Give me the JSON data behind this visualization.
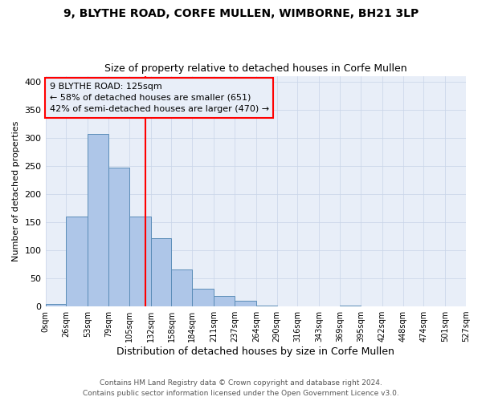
{
  "title": "9, BLYTHE ROAD, CORFE MULLEN, WIMBORNE, BH21 3LP",
  "subtitle": "Size of property relative to detached houses in Corfe Mullen",
  "xlabel": "Distribution of detached houses by size in Corfe Mullen",
  "ylabel": "Number of detached properties",
  "bar_edges": [
    0,
    26,
    53,
    79,
    105,
    132,
    158,
    184,
    211,
    237,
    264,
    290,
    316,
    343,
    369,
    395,
    422,
    448,
    474,
    501,
    527
  ],
  "bar_heights": [
    5,
    160,
    307,
    247,
    160,
    122,
    65,
    31,
    18,
    10,
    1,
    0,
    0,
    0,
    1,
    0,
    0,
    0,
    0,
    0
  ],
  "bar_color": "#aec6e8",
  "bar_edge_color": "#5b8db8",
  "property_line_x": 125,
  "property_line_color": "red",
  "ylim": [
    0,
    410
  ],
  "yticks": [
    0,
    50,
    100,
    150,
    200,
    250,
    300,
    350,
    400
  ],
  "annotation_line1": "9 BLYTHE ROAD: 125sqm",
  "annotation_line2": "← 58% of detached houses are smaller (651)",
  "annotation_line3": "42% of semi-detached houses are larger (470) →",
  "annotation_box_color": "red",
  "footer_line1": "Contains HM Land Registry data © Crown copyright and database right 2024.",
  "footer_line2": "Contains public sector information licensed under the Open Government Licence v3.0.",
  "plot_bg_color": "#e8eef8",
  "fig_bg_color": "#ffffff",
  "grid_color": "#c8d4e8"
}
